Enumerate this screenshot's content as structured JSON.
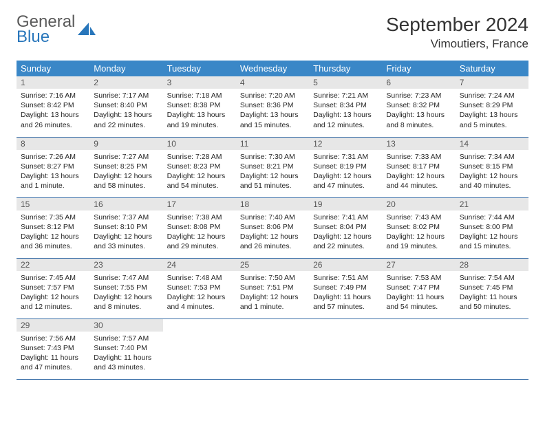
{
  "brand": {
    "general": "General",
    "blue": "Blue"
  },
  "title": "September 2024",
  "location": "Vimoutiers, France",
  "colors": {
    "header_bg": "#3a87c7",
    "header_text": "#ffffff",
    "daynum_bg": "#e7e7e7",
    "row_border": "#3a6fa8",
    "brand_blue": "#2876bb",
    "brand_gray": "#5a5a5a"
  },
  "daysOfWeek": [
    "Sunday",
    "Monday",
    "Tuesday",
    "Wednesday",
    "Thursday",
    "Friday",
    "Saturday"
  ],
  "weeks": [
    [
      {
        "n": "1",
        "sr": "7:16 AM",
        "ss": "8:42 PM",
        "dl": "13 hours and 26 minutes."
      },
      {
        "n": "2",
        "sr": "7:17 AM",
        "ss": "8:40 PM",
        "dl": "13 hours and 22 minutes."
      },
      {
        "n": "3",
        "sr": "7:18 AM",
        "ss": "8:38 PM",
        "dl": "13 hours and 19 minutes."
      },
      {
        "n": "4",
        "sr": "7:20 AM",
        "ss": "8:36 PM",
        "dl": "13 hours and 15 minutes."
      },
      {
        "n": "5",
        "sr": "7:21 AM",
        "ss": "8:34 PM",
        "dl": "13 hours and 12 minutes."
      },
      {
        "n": "6",
        "sr": "7:23 AM",
        "ss": "8:32 PM",
        "dl": "13 hours and 8 minutes."
      },
      {
        "n": "7",
        "sr": "7:24 AM",
        "ss": "8:29 PM",
        "dl": "13 hours and 5 minutes."
      }
    ],
    [
      {
        "n": "8",
        "sr": "7:26 AM",
        "ss": "8:27 PM",
        "dl": "13 hours and 1 minute."
      },
      {
        "n": "9",
        "sr": "7:27 AM",
        "ss": "8:25 PM",
        "dl": "12 hours and 58 minutes."
      },
      {
        "n": "10",
        "sr": "7:28 AM",
        "ss": "8:23 PM",
        "dl": "12 hours and 54 minutes."
      },
      {
        "n": "11",
        "sr": "7:30 AM",
        "ss": "8:21 PM",
        "dl": "12 hours and 51 minutes."
      },
      {
        "n": "12",
        "sr": "7:31 AM",
        "ss": "8:19 PM",
        "dl": "12 hours and 47 minutes."
      },
      {
        "n": "13",
        "sr": "7:33 AM",
        "ss": "8:17 PM",
        "dl": "12 hours and 44 minutes."
      },
      {
        "n": "14",
        "sr": "7:34 AM",
        "ss": "8:15 PM",
        "dl": "12 hours and 40 minutes."
      }
    ],
    [
      {
        "n": "15",
        "sr": "7:35 AM",
        "ss": "8:12 PM",
        "dl": "12 hours and 36 minutes."
      },
      {
        "n": "16",
        "sr": "7:37 AM",
        "ss": "8:10 PM",
        "dl": "12 hours and 33 minutes."
      },
      {
        "n": "17",
        "sr": "7:38 AM",
        "ss": "8:08 PM",
        "dl": "12 hours and 29 minutes."
      },
      {
        "n": "18",
        "sr": "7:40 AM",
        "ss": "8:06 PM",
        "dl": "12 hours and 26 minutes."
      },
      {
        "n": "19",
        "sr": "7:41 AM",
        "ss": "8:04 PM",
        "dl": "12 hours and 22 minutes."
      },
      {
        "n": "20",
        "sr": "7:43 AM",
        "ss": "8:02 PM",
        "dl": "12 hours and 19 minutes."
      },
      {
        "n": "21",
        "sr": "7:44 AM",
        "ss": "8:00 PM",
        "dl": "12 hours and 15 minutes."
      }
    ],
    [
      {
        "n": "22",
        "sr": "7:45 AM",
        "ss": "7:57 PM",
        "dl": "12 hours and 12 minutes."
      },
      {
        "n": "23",
        "sr": "7:47 AM",
        "ss": "7:55 PM",
        "dl": "12 hours and 8 minutes."
      },
      {
        "n": "24",
        "sr": "7:48 AM",
        "ss": "7:53 PM",
        "dl": "12 hours and 4 minutes."
      },
      {
        "n": "25",
        "sr": "7:50 AM",
        "ss": "7:51 PM",
        "dl": "12 hours and 1 minute."
      },
      {
        "n": "26",
        "sr": "7:51 AM",
        "ss": "7:49 PM",
        "dl": "11 hours and 57 minutes."
      },
      {
        "n": "27",
        "sr": "7:53 AM",
        "ss": "7:47 PM",
        "dl": "11 hours and 54 minutes."
      },
      {
        "n": "28",
        "sr": "7:54 AM",
        "ss": "7:45 PM",
        "dl": "11 hours and 50 minutes."
      }
    ],
    [
      {
        "n": "29",
        "sr": "7:56 AM",
        "ss": "7:43 PM",
        "dl": "11 hours and 47 minutes."
      },
      {
        "n": "30",
        "sr": "7:57 AM",
        "ss": "7:40 PM",
        "dl": "11 hours and 43 minutes."
      },
      null,
      null,
      null,
      null,
      null
    ]
  ],
  "labels": {
    "sunrise": "Sunrise: ",
    "sunset": "Sunset: ",
    "daylight": "Daylight: "
  }
}
